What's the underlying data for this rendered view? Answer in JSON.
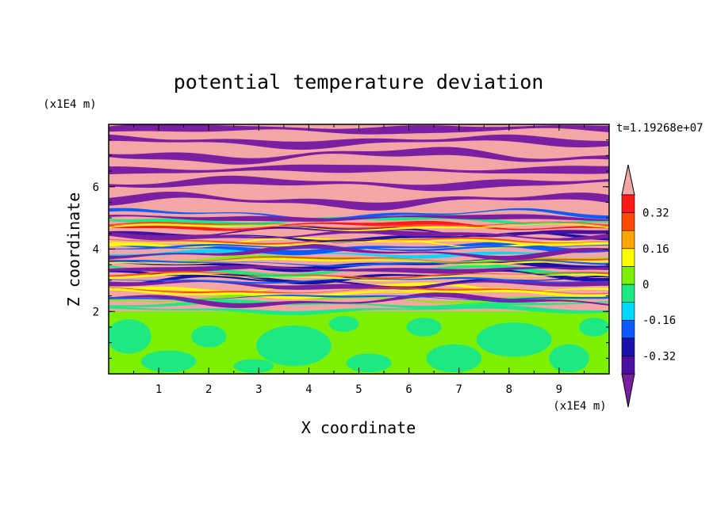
{
  "chart_data": {
    "type": "heatmap",
    "title": "potential temperature deviation",
    "xlabel": "X coordinate",
    "ylabel": "Z coordinate",
    "x_unit_label": "(x1E4 m)",
    "y_unit_label": "(x1E4 m)",
    "time_label": "t=1.19268e+07",
    "xlim": [
      0,
      10
    ],
    "ylim": [
      0,
      8
    ],
    "x_ticks": [
      1,
      2,
      3,
      4,
      5,
      6,
      7,
      8,
      9
    ],
    "y_ticks": [
      2,
      4,
      6
    ],
    "x_tick_labels": [
      "1",
      "2",
      "3",
      "4",
      "5",
      "6",
      "7",
      "8",
      "9"
    ],
    "y_tick_labels": [
      "2",
      "4",
      "6"
    ],
    "colorbar": {
      "levels": [
        -0.4,
        -0.32,
        -0.24,
        -0.16,
        -0.08,
        0,
        0.08,
        0.16,
        0.24,
        0.32,
        0.4
      ],
      "colors": [
        "#7b1fa2",
        "#4a0fa0",
        "#1a12a8",
        "#0a5cff",
        "#00d8ff",
        "#1ee882",
        "#7cf000",
        "#ffff00",
        "#ffa500",
        "#ff4a00",
        "#ff1a1a",
        "#f4a5a5"
      ],
      "tick_values": [
        -0.32,
        -0.16,
        0,
        0.16,
        0.32
      ],
      "tick_labels": [
        "-0.32",
        "-0.16",
        "0",
        "0.16",
        "0.32"
      ],
      "extend": "both"
    },
    "regions": {
      "lower_layer_z": [
        0,
        2
      ],
      "lower_layer_values": [
        0.0,
        0.08
      ],
      "upper_layer_z": [
        2,
        8
      ],
      "upper_layer_pattern": "alternating horizontal bands of about +0.4 and -0.4 with mixed intermediate values between z=2 and z=5"
    }
  }
}
